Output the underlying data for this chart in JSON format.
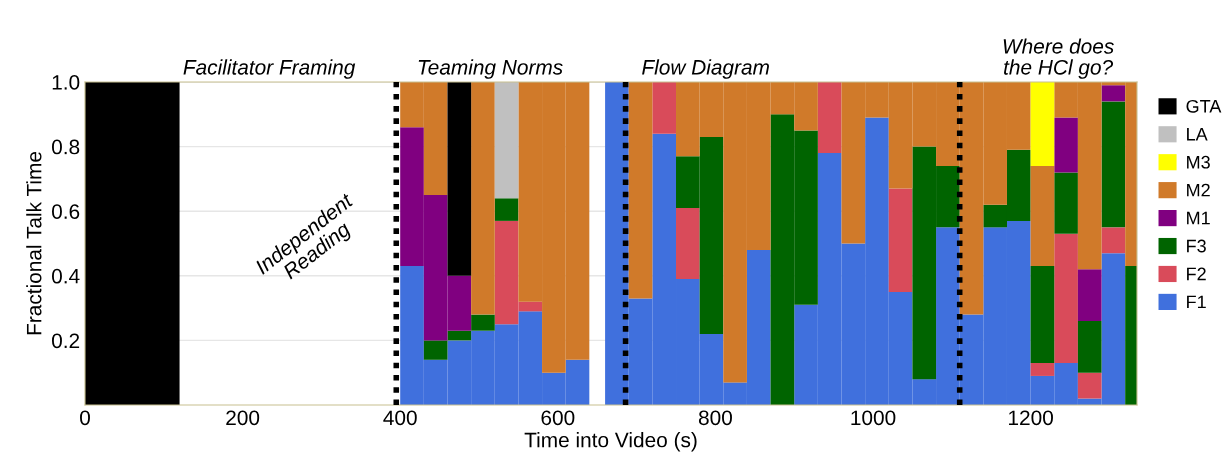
{
  "chart_data": {
    "type": "bar",
    "stacked": true,
    "xlabel": "Time into Video (s)",
    "ylabel": "Fractional Talk Time",
    "x": [
      60,
      260,
      415,
      445,
      475,
      505,
      535,
      565,
      595,
      625,
      650,
      675,
      705,
      735,
      765,
      795,
      825,
      855,
      885,
      915,
      945,
      975,
      1005,
      1035,
      1065,
      1095,
      1125,
      1155,
      1185,
      1215,
      1245,
      1275,
      1305,
      1327.5
    ],
    "series": [
      {
        "name": "F1",
        "color": "#4070dd",
        "values": [
          0,
          0,
          0.43,
          0.14,
          0.2,
          0.23,
          0.25,
          0.29,
          0.1,
          0.14,
          0,
          1,
          0.33,
          0.84,
          0.39,
          0.22,
          0.07,
          0.48,
          0,
          0.31,
          0.78,
          0.5,
          0.89,
          0.35,
          0.08,
          0.55,
          0.28,
          0.55,
          0.57,
          0.09,
          0.13,
          0.02,
          0.47,
          0
        ]
      },
      {
        "name": "F2",
        "color": "#d94b5a",
        "values": [
          0,
          0,
          0,
          0,
          0,
          0,
          0.32,
          0.03,
          0,
          0,
          0,
          0,
          0,
          0.16,
          0.22,
          0,
          0,
          0,
          0,
          0,
          0.22,
          0,
          0,
          0.32,
          0,
          0,
          0,
          0,
          0,
          0.04,
          0.4,
          0.08,
          0.08,
          0
        ]
      },
      {
        "name": "F3",
        "color": "#006400",
        "values": [
          0,
          0,
          0,
          0.06,
          0.03,
          0.05,
          0.07,
          0,
          0,
          0,
          0,
          0,
          0,
          0,
          0.16,
          0.61,
          0,
          0,
          0.9,
          0.54,
          0,
          0,
          0,
          0,
          0.72,
          0.19,
          0,
          0.07,
          0.22,
          0.3,
          0.19,
          0.16,
          0.39,
          0.43
        ]
      },
      {
        "name": "M1",
        "color": "#800080",
        "values": [
          0,
          0,
          0.43,
          0.45,
          0.17,
          0,
          0,
          0,
          0,
          0,
          0,
          0,
          0,
          0,
          0,
          0,
          0,
          0,
          0,
          0,
          0,
          0,
          0,
          0,
          0,
          0,
          0,
          0,
          0,
          0,
          0.17,
          0.16,
          0.05,
          0
        ]
      },
      {
        "name": "M2",
        "color": "#d07a2a",
        "values": [
          0,
          0,
          0.14,
          0.35,
          0,
          0.72,
          0,
          0.68,
          0.9,
          0.86,
          0,
          0,
          0.67,
          0,
          0.23,
          0.17,
          0.93,
          0.52,
          0.1,
          0.15,
          0,
          0.5,
          0.11,
          0.33,
          0.2,
          0.26,
          0.72,
          0.38,
          0.21,
          0.31,
          0.11,
          0.58,
          0.01,
          0.57
        ]
      },
      {
        "name": "M3",
        "color": "#ffff00",
        "values": [
          0,
          0,
          0,
          0,
          0,
          0,
          0,
          0,
          0,
          0,
          0,
          0,
          0,
          0,
          0,
          0,
          0,
          0,
          0,
          0,
          0,
          0,
          0,
          0,
          0,
          0,
          0,
          0,
          0,
          0.26,
          0,
          0,
          0,
          0
        ]
      },
      {
        "name": "LA",
        "color": "#c0c0c0",
        "values": [
          0,
          0,
          0,
          0,
          0,
          0,
          0.36,
          0,
          0,
          0,
          0,
          0,
          0,
          0,
          0,
          0,
          0,
          0,
          0,
          0,
          0,
          0,
          0,
          0,
          0,
          0,
          0,
          0,
          0,
          0,
          0,
          0,
          0,
          0
        ]
      },
      {
        "name": "GTA",
        "color": "#000000",
        "values": [
          1,
          0,
          0,
          0,
          0.6,
          0,
          0,
          0,
          0,
          0,
          0,
          0,
          0,
          0,
          0,
          0,
          0,
          0,
          0,
          0,
          0,
          0,
          0,
          0,
          0,
          0,
          0,
          0,
          0,
          0,
          0,
          0,
          0,
          0
        ]
      }
    ],
    "xlim": [
      0,
      1335
    ],
    "xticks": [
      0,
      200,
      400,
      600,
      800,
      1000,
      1200
    ],
    "ylim": [
      0,
      1
    ],
    "yticks": [
      0.2,
      0.4,
      0.6,
      0.8,
      {
        "value": 1,
        "label": "1.0"
      }
    ],
    "grid": "y",
    "legend": "right",
    "ref_lines": [
      {
        "axis": "x",
        "value": 395,
        "color": "#000000",
        "line_style": "dotted"
      },
      {
        "axis": "x",
        "value": 686,
        "color": "#000000",
        "line_style": "dotted"
      },
      {
        "axis": "x",
        "value": 1110,
        "color": "#000000",
        "line_style": "dotted"
      }
    ],
    "annotations": [
      "Facilitator Framing",
      "Independent\nReading",
      "Teaming Norms",
      "Flow Diagram",
      "Where does\nthe HCl go?"
    ]
  }
}
